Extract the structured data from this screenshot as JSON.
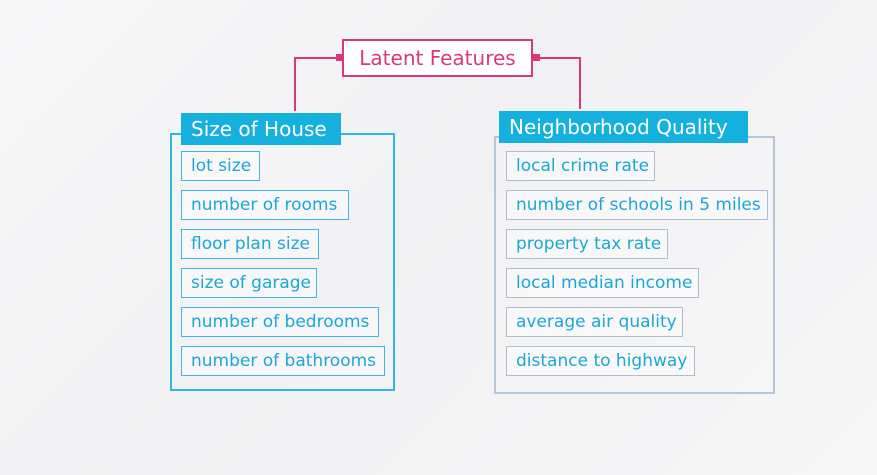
{
  "root": {
    "label": "Latent Features"
  },
  "groups": [
    {
      "title": "Size of House",
      "items": [
        "lot size",
        "number of rooms",
        "floor plan size",
        "size of garage",
        "number of bedrooms",
        "number of bathrooms"
      ]
    },
    {
      "title": "Neighborhood Quality",
      "items": [
        "local crime rate",
        "number of schools in 5 miles",
        "property tax rate",
        "local median income",
        "average air quality",
        "distance to highway"
      ]
    }
  ],
  "colors": {
    "root_accent": "#d9397a",
    "house_accent": "#14b1df",
    "neighborhood_border": "#b7c5d8"
  }
}
